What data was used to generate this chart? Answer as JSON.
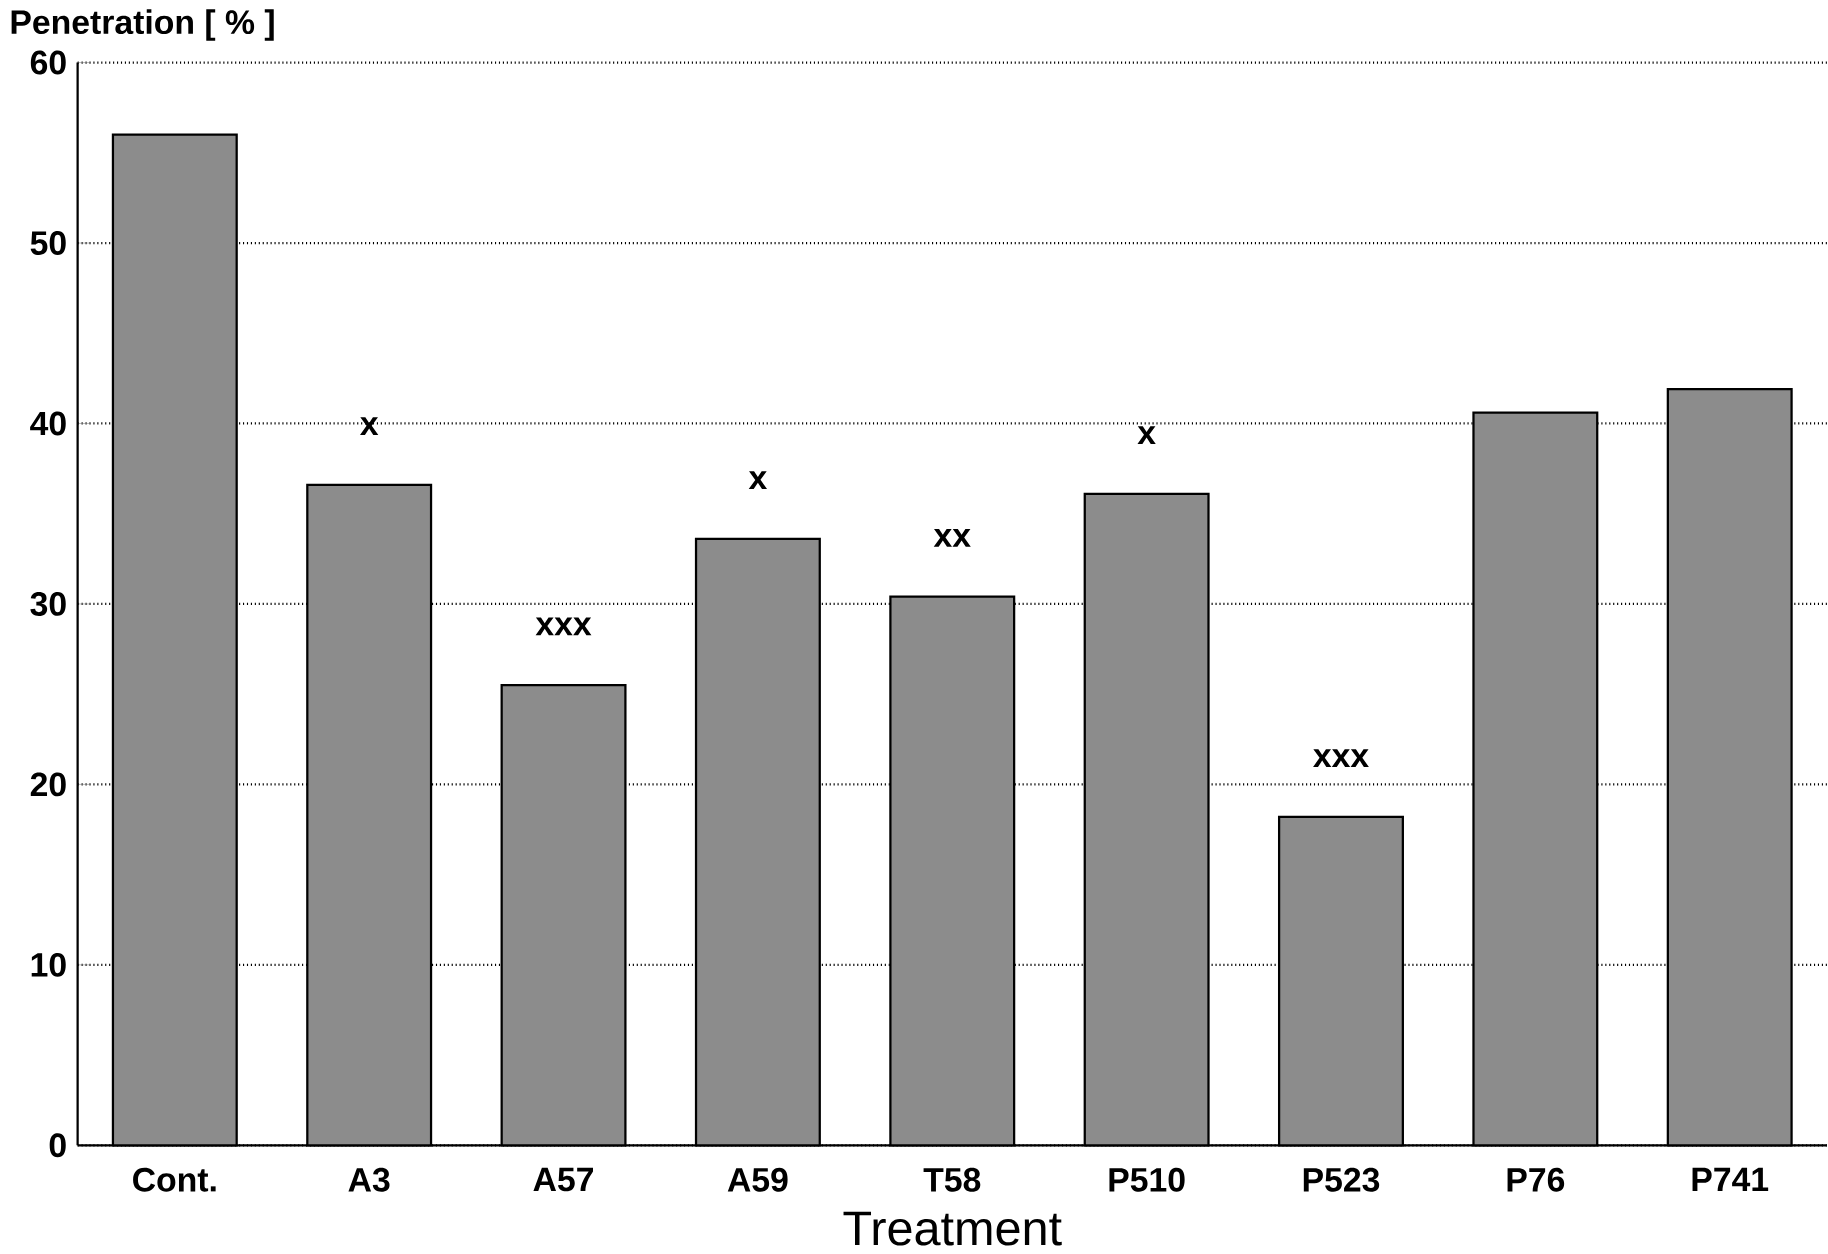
{
  "chart_data": {
    "type": "bar",
    "xlabel": "Treatment",
    "ylabel": "Penetration [ % ]",
    "categories": [
      "Cont.",
      "A3",
      "A57",
      "A59",
      "T58",
      "P510",
      "P523",
      "P76",
      "P741"
    ],
    "values": [
      56.0,
      36.6,
      25.5,
      33.6,
      30.4,
      36.1,
      18.2,
      40.6,
      41.9
    ],
    "value_labels": [
      null,
      "x",
      "xxx",
      "x",
      "xx",
      "x",
      "xxx",
      null,
      null
    ],
    "color": "#8c8c8c",
    "ylim": [
      0,
      60
    ],
    "yticks": [
      0,
      10,
      20,
      30,
      40,
      50,
      60
    ],
    "grid": "y"
  }
}
